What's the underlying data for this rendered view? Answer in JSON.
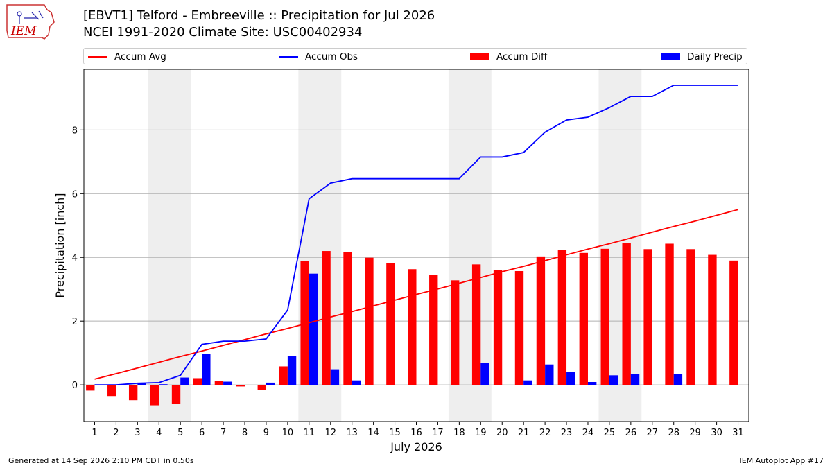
{
  "header": {
    "title_line1": "[EBVT1] Telford - Embreeville :: Precipitation for Jul 2026",
    "title_line2": "NCEI 1991-2020 Climate Site: USC00402934"
  },
  "logo": {
    "text": "IEM",
    "icon": "iem-iowa-state-logo",
    "color": "#cc0000"
  },
  "legend": [
    {
      "label": "Accum Avg",
      "kind": "line",
      "color": "#ff0000"
    },
    {
      "label": "Accum Obs",
      "kind": "line",
      "color": "#0000ff"
    },
    {
      "label": "Accum Diff",
      "kind": "bar",
      "color": "#ff0000"
    },
    {
      "label": "Daily Precip",
      "kind": "bar",
      "color": "#0000ff"
    }
  ],
  "footer": {
    "left": "Generated at 14 Sep 2026 2:10 PM CDT in 0.50s",
    "right": "IEM Autoplot App #17"
  },
  "chart_data": {
    "type": "bar",
    "xlabel": "July 2026",
    "ylabel": "Precipitation [inch]",
    "x": [
      1,
      2,
      3,
      4,
      5,
      6,
      7,
      8,
      9,
      10,
      11,
      12,
      13,
      14,
      15,
      16,
      17,
      18,
      19,
      20,
      21,
      22,
      23,
      24,
      25,
      26,
      27,
      28,
      29,
      30,
      31
    ],
    "xlim": [
      0.5,
      31.5
    ],
    "ylim": [
      -1.15,
      9.9
    ],
    "yticks": [
      0,
      2,
      4,
      6,
      8
    ],
    "grid": "horizontal",
    "weekend_shading": [
      [
        3.5,
        5.5
      ],
      [
        10.5,
        12.5
      ],
      [
        17.5,
        19.5
      ],
      [
        24.5,
        26.5
      ]
    ],
    "series": [
      {
        "name": "Accum Avg",
        "type": "line",
        "color": "#ff0000",
        "values": [
          0.18,
          0.35,
          0.53,
          0.71,
          0.89,
          1.06,
          1.24,
          1.42,
          1.6,
          1.77,
          1.95,
          2.13,
          2.3,
          2.48,
          2.66,
          2.84,
          3.01,
          3.19,
          3.37,
          3.55,
          3.72,
          3.9,
          4.08,
          4.26,
          4.43,
          4.61,
          4.79,
          4.97,
          5.14,
          5.32,
          5.5
        ]
      },
      {
        "name": "Accum Obs",
        "type": "line",
        "color": "#0000ff",
        "values": [
          0,
          0,
          0.05,
          0.07,
          0.3,
          1.27,
          1.37,
          1.37,
          1.44,
          2.35,
          5.84,
          6.33,
          6.47,
          6.47,
          6.47,
          6.47,
          6.47,
          6.47,
          7.15,
          7.15,
          7.29,
          7.93,
          8.31,
          8.4,
          8.7,
          9.05,
          9.05,
          9.4,
          9.4,
          9.4,
          9.4
        ]
      },
      {
        "name": "Accum Diff",
        "type": "bar",
        "color": "#ff0000",
        "offset": "left",
        "values": [
          -0.18,
          -0.35,
          -0.48,
          -0.64,
          -0.59,
          0.21,
          0.13,
          -0.05,
          -0.16,
          0.58,
          3.89,
          4.2,
          4.17,
          3.99,
          3.81,
          3.63,
          3.46,
          3.28,
          3.78,
          3.6,
          3.57,
          4.03,
          4.23,
          4.14,
          4.27,
          4.44,
          4.26,
          4.43,
          4.26,
          4.08,
          3.9
        ]
      },
      {
        "name": "Daily Precip",
        "type": "bar",
        "color": "#0000ff",
        "offset": "right",
        "values": [
          0,
          0,
          0.05,
          0.02,
          0.23,
          0.97,
          0.1,
          0,
          0.07,
          0.91,
          3.49,
          0.49,
          0.14,
          0,
          0,
          0,
          0,
          0,
          0.68,
          0,
          0.14,
          0.64,
          0.4,
          0.09,
          0.3,
          0.35,
          0,
          0.35,
          0,
          0,
          0
        ]
      }
    ]
  }
}
